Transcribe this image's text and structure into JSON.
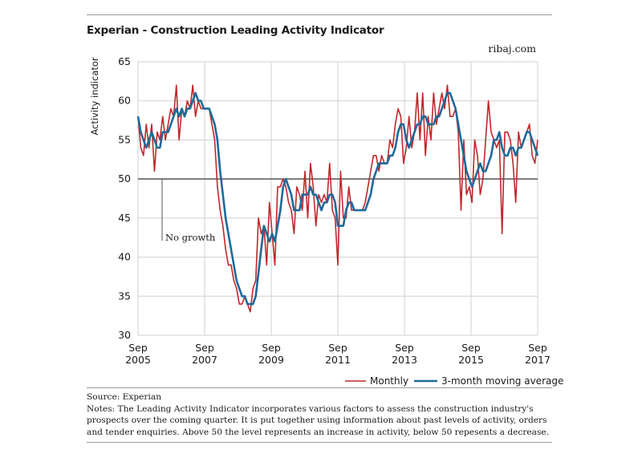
{
  "header": {
    "title": "Experian - Construction Leading Activity Indicator",
    "source_site": "ribaj.com"
  },
  "annotation": {
    "no_growth": "No growth"
  },
  "footer": {
    "source": "Source: Experian",
    "notes": "Notes: The Leading Activity Indicator incorporates various factors to assess the construction industry's prospects over the coming quarter. It is put together using information about past levels of activity, orders and tender enquiries. Above 50 the level represents an increase in activity, below 50 repesents a decrease."
  },
  "colors": {
    "monthly": "#c0282d",
    "moving_average": "#1f6a9a",
    "baseline": "#555555",
    "grid": "#d0d0d0"
  },
  "chart_data": {
    "type": "line",
    "title": "Experian - Construction Leading Activity Indicator",
    "ylabel": "Activity indicator",
    "xlabel": "",
    "ylim": [
      30,
      65
    ],
    "yticks": [
      30,
      35,
      40,
      45,
      50,
      55,
      60,
      65
    ],
    "xticks": [
      {
        "month": "Sep",
        "year": "2005"
      },
      {
        "month": "Sep",
        "year": "2007"
      },
      {
        "month": "Sep",
        "year": "2009"
      },
      {
        "month": "Sep",
        "year": "2011"
      },
      {
        "month": "Sep",
        "year": "2013"
      },
      {
        "month": "Sep",
        "year": "2015"
      },
      {
        "month": "Sep",
        "year": "2017"
      }
    ],
    "x_start": "Sep 2005",
    "x_end": "Sep 2017",
    "grid": true,
    "reference_line": 50,
    "legend_position": "bottom-right",
    "series": [
      {
        "name": "Monthly",
        "color": "#c0282d",
        "values": [
          58,
          54,
          53,
          57,
          54,
          57,
          51,
          56,
          55,
          58,
          55,
          57,
          59,
          58,
          62,
          55,
          59,
          58,
          60,
          59,
          62,
          58,
          60,
          59,
          59,
          59,
          59,
          57,
          55,
          49,
          46,
          44,
          41,
          39,
          39,
          37,
          36,
          34,
          34,
          35,
          34,
          33,
          36,
          37,
          45,
          43,
          44,
          39,
          47,
          43,
          39,
          49,
          49,
          50,
          49,
          47,
          46,
          43,
          49,
          48,
          46,
          51,
          45,
          52,
          49,
          44,
          48,
          47,
          48,
          47,
          52,
          46,
          45,
          39,
          51,
          45,
          45,
          49,
          46,
          46,
          46,
          46,
          46,
          47,
          49,
          51,
          53,
          53,
          51,
          53,
          52,
          52,
          55,
          54,
          57,
          59,
          58,
          52,
          54,
          58,
          54,
          56,
          61,
          55,
          61,
          53,
          58,
          55,
          61,
          57,
          59,
          61,
          59,
          62,
          58,
          58,
          59,
          56,
          46,
          55,
          48,
          49,
          47,
          55,
          53,
          48,
          50,
          55,
          60,
          56,
          55,
          54,
          55,
          43,
          56,
          56,
          55,
          52,
          47,
          56,
          54,
          55,
          56,
          57,
          53,
          52,
          55
        ],
        "note": "approximate, monthly Sep 2005 - Sep 2017"
      },
      {
        "name": "3-month moving average",
        "color": "#1f6a9a",
        "values": [
          58,
          56,
          55,
          54,
          55,
          56,
          55,
          54,
          54,
          56,
          56,
          56,
          57,
          58,
          59,
          58,
          59,
          58,
          59,
          59,
          60,
          61,
          60,
          60,
          59,
          59,
          59,
          58,
          57,
          55,
          51,
          48,
          45,
          43,
          41,
          39,
          37,
          36,
          35,
          35,
          34,
          34,
          34,
          35,
          38,
          41,
          44,
          43,
          42,
          43,
          42,
          44,
          46,
          49,
          50,
          49,
          48,
          46,
          46,
          46,
          48,
          48,
          48,
          49,
          48,
          48,
          47,
          46,
          47,
          47,
          48,
          48,
          47,
          44,
          44,
          44,
          46,
          47,
          47,
          46,
          46,
          46,
          46,
          46,
          47,
          48,
          50,
          51,
          52,
          52,
          52,
          52,
          53,
          53,
          54,
          56,
          57,
          57,
          55,
          54,
          55,
          56,
          57,
          57,
          58,
          58,
          57,
          57,
          57,
          58,
          58,
          59,
          60,
          61,
          61,
          60,
          59,
          57,
          55,
          53,
          51,
          50,
          49,
          50,
          51,
          52,
          51,
          51,
          52,
          53,
          55,
          55,
          56,
          54,
          53,
          53,
          54,
          54,
          53,
          54,
          54,
          55,
          56,
          56,
          55,
          54,
          53
        ]
      }
    ]
  }
}
